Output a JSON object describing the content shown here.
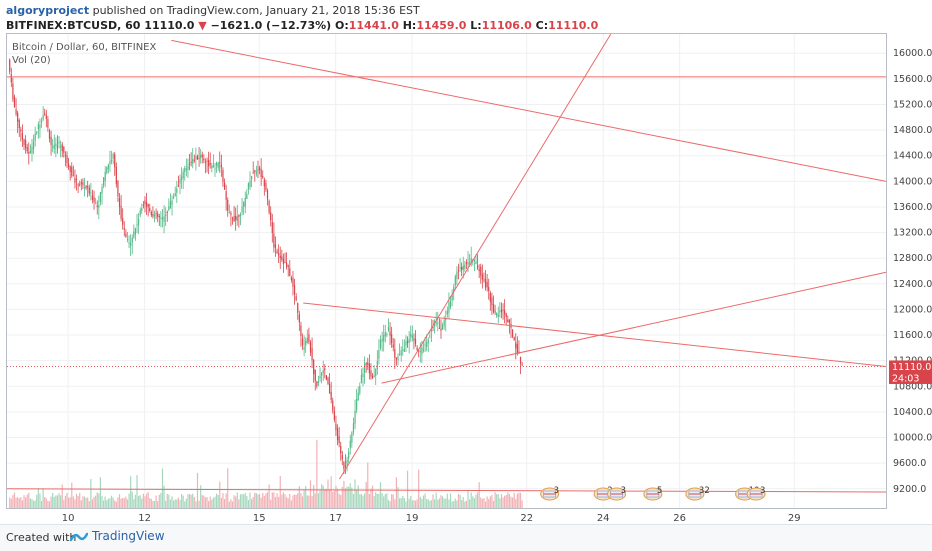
{
  "header": {
    "author": "algoryproject",
    "published_text": "published on TradingView.com, January 21, 2018 15:36 EST",
    "symbol": "BITFINEX:BTCUSD, 60",
    "last": "11110.0",
    "change": "−1621.0 (−12.73%)",
    "open_label": "O:",
    "open": "11441.0",
    "high_label": "H:",
    "high": "11459.0",
    "low_label": "L:",
    "low": "11106.0",
    "close_label": "C:",
    "close": "11110.0"
  },
  "legend": {
    "series_title": "Bitcoin / Dollar, 60, BITFINEX",
    "volume_title": "Vol (20)"
  },
  "footer": {
    "created_with": "Created with",
    "brand": "TradingView"
  },
  "colors": {
    "up": "#53b987",
    "down": "#d9434a",
    "trendline": "#ec6a6a",
    "volume_up": "#a7d8be",
    "volume_down": "#f0b2b5",
    "grid": "#eef0f3"
  },
  "chart_data": {
    "type": "candlestick",
    "y_axis": {
      "min": 8900,
      "max": 16300,
      "ticks": [
        9200,
        9600,
        10000,
        10400,
        10800,
        11200,
        11600,
        12000,
        12400,
        12800,
        13200,
        13600,
        14000,
        14400,
        14800,
        15200,
        15600,
        16000
      ],
      "tick_labels": [
        "9200.0",
        "9600.0",
        "10000.0",
        "10400.0",
        "10800.0",
        "11200.0",
        "11600.0",
        "12000.0",
        "12400.0",
        "12800.0",
        "13200.0",
        "13600.0",
        "14000.0",
        "14400.0",
        "14800.0",
        "15200.0",
        "15600.0",
        "16000.0"
      ]
    },
    "x_axis": {
      "min": 8.4,
      "max": 31.4,
      "ticks": [
        10,
        12,
        15,
        17,
        19,
        22,
        24,
        26,
        29
      ],
      "tick_labels": [
        "10",
        "12",
        "15",
        "17",
        "19",
        "22",
        "24",
        "26",
        "29"
      ]
    },
    "price_markers": [
      {
        "value": 11110,
        "label": "11110.0",
        "color": "#d9434a"
      },
      {
        "value": 10930,
        "label": "24:03",
        "color": "#d9434a"
      }
    ],
    "last_price_line": 11110,
    "price_path": [
      [
        8.45,
        15900
      ],
      [
        8.6,
        15200
      ],
      [
        8.8,
        14700
      ],
      [
        9.0,
        14400
      ],
      [
        9.2,
        14800
      ],
      [
        9.4,
        15100
      ],
      [
        9.6,
        14500
      ],
      [
        9.8,
        14600
      ],
      [
        10.0,
        14300
      ],
      [
        10.2,
        14000
      ],
      [
        10.5,
        13900
      ],
      [
        10.8,
        13600
      ],
      [
        11.0,
        14200
      ],
      [
        11.2,
        14400
      ],
      [
        11.4,
        13400
      ],
      [
        11.6,
        13000
      ],
      [
        11.8,
        13300
      ],
      [
        12.0,
        13700
      ],
      [
        12.2,
        13500
      ],
      [
        12.5,
        13400
      ],
      [
        12.8,
        13800
      ],
      [
        13.0,
        14100
      ],
      [
        13.2,
        14300
      ],
      [
        13.5,
        14400
      ],
      [
        13.8,
        14200
      ],
      [
        14.0,
        14300
      ],
      [
        14.2,
        13500
      ],
      [
        14.4,
        13400
      ],
      [
        14.6,
        13600
      ],
      [
        14.8,
        14100
      ],
      [
        15.0,
        14200
      ],
      [
        15.2,
        13900
      ],
      [
        15.4,
        13000
      ],
      [
        15.6,
        12800
      ],
      [
        15.8,
        12600
      ],
      [
        16.0,
        12100
      ],
      [
        16.15,
        11400
      ],
      [
        16.3,
        11600
      ],
      [
        16.5,
        10800
      ],
      [
        16.7,
        11100
      ],
      [
        16.9,
        10600
      ],
      [
        17.0,
        10200
      ],
      [
        17.1,
        9900
      ],
      [
        17.25,
        9500
      ],
      [
        17.4,
        9900
      ],
      [
        17.6,
        10700
      ],
      [
        17.8,
        11200
      ],
      [
        18.0,
        10900
      ],
      [
        18.2,
        11500
      ],
      [
        18.4,
        11700
      ],
      [
        18.6,
        11200
      ],
      [
        18.8,
        11400
      ],
      [
        19.0,
        11600
      ],
      [
        19.2,
        11300
      ],
      [
        19.4,
        11500
      ],
      [
        19.6,
        11800
      ],
      [
        19.8,
        11700
      ],
      [
        20.0,
        12100
      ],
      [
        20.2,
        12600
      ],
      [
        20.4,
        12700
      ],
      [
        20.6,
        12800
      ],
      [
        20.8,
        12600
      ],
      [
        21.0,
        12300
      ],
      [
        21.2,
        11900
      ],
      [
        21.4,
        12000
      ],
      [
        21.6,
        11700
      ],
      [
        21.8,
        11300
      ],
      [
        21.9,
        11110
      ]
    ],
    "trendlines": [
      {
        "from": [
          12.7,
          16200
        ],
        "to": [
          31.4,
          14000
        ]
      },
      {
        "from": [
          8.4,
          15630
        ],
        "to": [
          31.4,
          15630
        ]
      },
      {
        "from": [
          16.15,
          12100
        ],
        "to": [
          31.4,
          11110
        ]
      },
      {
        "from": [
          18.2,
          10850
        ],
        "to": [
          31.4,
          12580
        ]
      },
      {
        "from": [
          17.1,
          9350
        ],
        "to": [
          24.2,
          16300
        ]
      },
      {
        "from": [
          8.4,
          9200
        ],
        "to": [
          31.4,
          9150
        ]
      }
    ],
    "events": [
      {
        "x": 22.6,
        "count": "3"
      },
      {
        "x": 24.0,
        "count": "2"
      },
      {
        "x": 24.35,
        "count": "3"
      },
      {
        "x": 25.3,
        "count": "5"
      },
      {
        "x": 26.4,
        "count": "32"
      },
      {
        "x": 27.7,
        "count": "10"
      },
      {
        "x": 28.0,
        "count": "3"
      }
    ]
  }
}
